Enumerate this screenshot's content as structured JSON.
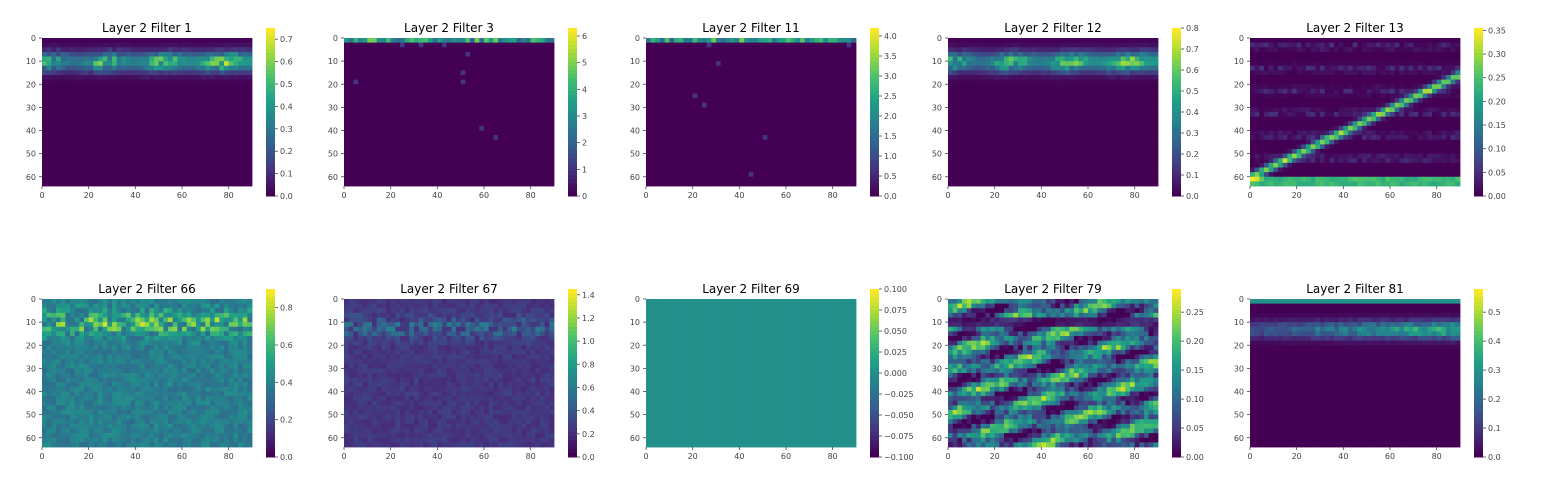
{
  "figure": {
    "colormap": [
      "#440154",
      "#46327e",
      "#365c8d",
      "#277f8e",
      "#1fa187",
      "#4ac16d",
      "#a0da39",
      "#fde725"
    ]
  },
  "chart_data": [
    {
      "type": "heatmap",
      "title": "Layer 2 Filter 1",
      "x_ticks": [
        0,
        20,
        40,
        60,
        80
      ],
      "y_ticks": [
        0,
        10,
        20,
        30,
        40,
        50,
        60
      ],
      "xlim": [
        0,
        90
      ],
      "ylim": [
        64,
        0
      ],
      "colorbar": {
        "min": 0.0,
        "max": 0.75,
        "ticks": [
          "0.0",
          "0.1",
          "0.2",
          "0.3",
          "0.4",
          "0.5",
          "0.6",
          "0.7"
        ],
        "tick_values": [
          0,
          0.1,
          0.2,
          0.3,
          0.4,
          0.5,
          0.6,
          0.7
        ]
      },
      "pattern": "bright-band"
    },
    {
      "type": "heatmap",
      "title": "Layer 2 Filter 3",
      "x_ticks": [
        0,
        20,
        40,
        60,
        80
      ],
      "y_ticks": [
        0,
        10,
        20,
        30,
        40,
        50,
        60
      ],
      "xlim": [
        0,
        90
      ],
      "ylim": [
        64,
        0
      ],
      "colorbar": {
        "min": 0,
        "max": 6.3,
        "ticks": [
          "0",
          "1",
          "2",
          "3",
          "4",
          "5",
          "6"
        ],
        "tick_values": [
          0,
          1,
          2,
          3,
          4,
          5,
          6
        ]
      },
      "pattern": "top-edge"
    },
    {
      "type": "heatmap",
      "title": "Layer 2 Filter 11",
      "x_ticks": [
        0,
        20,
        40,
        60,
        80
      ],
      "y_ticks": [
        0,
        10,
        20,
        30,
        40,
        50,
        60
      ],
      "xlim": [
        0,
        90
      ],
      "ylim": [
        64,
        0
      ],
      "colorbar": {
        "min": 0.0,
        "max": 4.2,
        "ticks": [
          "0.0",
          "0.5",
          "1.0",
          "1.5",
          "2.0",
          "2.5",
          "3.0",
          "3.5",
          "4.0"
        ],
        "tick_values": [
          0,
          0.5,
          1.0,
          1.5,
          2.0,
          2.5,
          3.0,
          3.5,
          4.0
        ]
      },
      "pattern": "top-edge"
    },
    {
      "type": "heatmap",
      "title": "Layer 2 Filter 12",
      "x_ticks": [
        0,
        20,
        40,
        60,
        80
      ],
      "y_ticks": [
        0,
        10,
        20,
        30,
        40,
        50,
        60
      ],
      "xlim": [
        0,
        90
      ],
      "ylim": [
        64,
        0
      ],
      "colorbar": {
        "min": 0.0,
        "max": 0.8,
        "ticks": [
          "0.0",
          "0.1",
          "0.2",
          "0.3",
          "0.4",
          "0.5",
          "0.6",
          "0.7",
          "0.8"
        ],
        "tick_values": [
          0,
          0.1,
          0.2,
          0.3,
          0.4,
          0.5,
          0.6,
          0.7,
          0.8
        ]
      },
      "pattern": "bright-band"
    },
    {
      "type": "heatmap",
      "title": "Layer 2 Filter 13",
      "x_ticks": [
        0,
        20,
        40,
        60,
        80
      ],
      "y_ticks": [
        0,
        10,
        20,
        30,
        40,
        50,
        60
      ],
      "xlim": [
        0,
        90
      ],
      "ylim": [
        64,
        0
      ],
      "colorbar": {
        "min": 0.0,
        "max": 0.355,
        "ticks": [
          "0.00",
          "0.05",
          "0.10",
          "0.15",
          "0.20",
          "0.25",
          "0.30",
          "0.35"
        ],
        "tick_values": [
          0,
          0.05,
          0.1,
          0.15,
          0.2,
          0.25,
          0.3,
          0.35
        ]
      },
      "pattern": "diagonal-streaks"
    },
    {
      "type": "heatmap",
      "title": "Layer 2 Filter 66",
      "x_ticks": [
        0,
        20,
        40,
        60,
        80
      ],
      "y_ticks": [
        0,
        10,
        20,
        30,
        40,
        50,
        60
      ],
      "xlim": [
        0,
        90
      ],
      "ylim": [
        64,
        0
      ],
      "colorbar": {
        "min": 0.0,
        "max": 0.9,
        "ticks": [
          "0.0",
          "0.2",
          "0.4",
          "0.6",
          "0.8"
        ],
        "tick_values": [
          0,
          0.2,
          0.4,
          0.6,
          0.8
        ]
      },
      "pattern": "textured-mid"
    },
    {
      "type": "heatmap",
      "title": "Layer 2 Filter 67",
      "x_ticks": [
        0,
        20,
        40,
        60,
        80
      ],
      "y_ticks": [
        0,
        10,
        20,
        30,
        40,
        50,
        60
      ],
      "xlim": [
        0,
        90
      ],
      "ylim": [
        64,
        0
      ],
      "colorbar": {
        "min": 0.0,
        "max": 1.45,
        "ticks": [
          "0.0",
          "0.2",
          "0.4",
          "0.6",
          "0.8",
          "1.0",
          "1.2",
          "1.4"
        ],
        "tick_values": [
          0,
          0.2,
          0.4,
          0.6,
          0.8,
          1.0,
          1.2,
          1.4
        ]
      },
      "pattern": "textured-low"
    },
    {
      "type": "heatmap",
      "title": "Layer 2 Filter 69",
      "x_ticks": [
        0,
        20,
        40,
        60,
        80
      ],
      "y_ticks": [
        0,
        10,
        20,
        30,
        40,
        50,
        60
      ],
      "xlim": [
        0,
        90
      ],
      "ylim": [
        64,
        0
      ],
      "colorbar": {
        "min": -0.1,
        "max": 0.1,
        "ticks": [
          "−0.100",
          "−0.075",
          "−0.050",
          "−0.025",
          "0.000",
          "0.025",
          "0.050",
          "0.075",
          "0.100"
        ],
        "tick_values": [
          -0.1,
          -0.075,
          -0.05,
          -0.025,
          0,
          0.025,
          0.05,
          0.075,
          0.1
        ]
      },
      "pattern": "uniform",
      "uniform_value": 0.0
    },
    {
      "type": "heatmap",
      "title": "Layer 2 Filter 79",
      "x_ticks": [
        0,
        20,
        40,
        60,
        80
      ],
      "y_ticks": [
        0,
        10,
        20,
        30,
        40,
        50,
        60
      ],
      "xlim": [
        0,
        90
      ],
      "ylim": [
        64,
        0
      ],
      "colorbar": {
        "min": 0.0,
        "max": 0.29,
        "ticks": [
          "0.00",
          "0.05",
          "0.10",
          "0.15",
          "0.20",
          "0.25"
        ],
        "tick_values": [
          0,
          0.05,
          0.1,
          0.15,
          0.2,
          0.25
        ]
      },
      "pattern": "busy"
    },
    {
      "type": "heatmap",
      "title": "Layer 2 Filter 81",
      "x_ticks": [
        0,
        20,
        40,
        60,
        80
      ],
      "y_ticks": [
        0,
        10,
        20,
        30,
        40,
        50,
        60
      ],
      "xlim": [
        0,
        90
      ],
      "ylim": [
        64,
        0
      ],
      "colorbar": {
        "min": 0.0,
        "max": 0.58,
        "ticks": [
          "0.0",
          "0.1",
          "0.2",
          "0.3",
          "0.4",
          "0.5"
        ],
        "tick_values": [
          0,
          0.1,
          0.2,
          0.3,
          0.4,
          0.5
        ]
      },
      "pattern": "soft-band"
    }
  ]
}
